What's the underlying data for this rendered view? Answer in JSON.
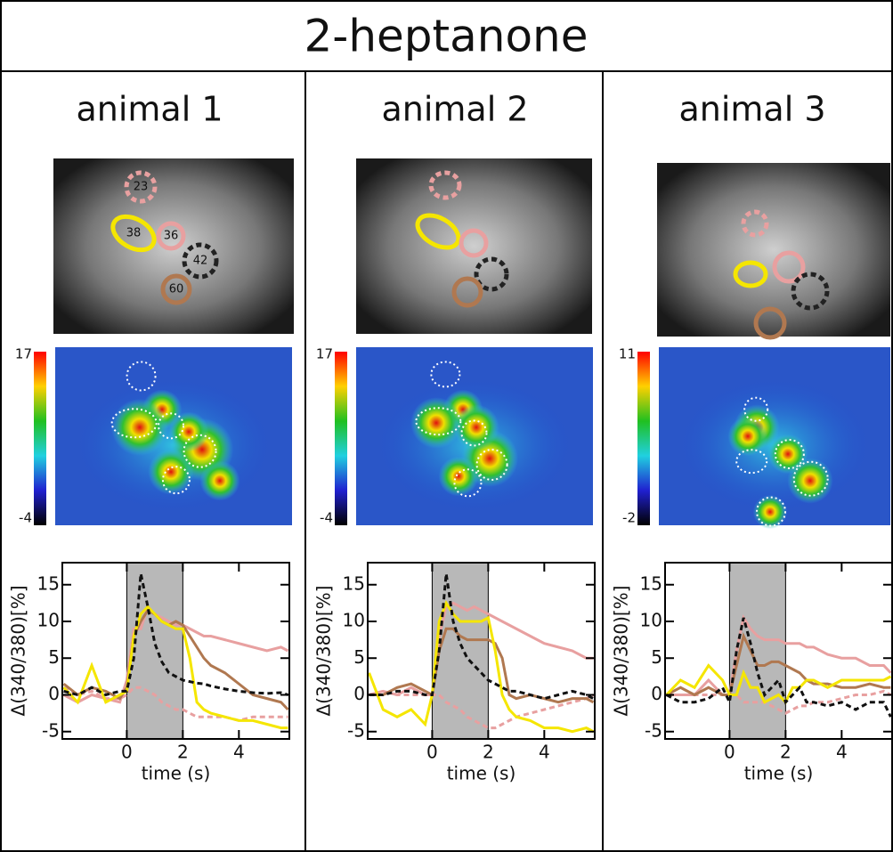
{
  "title": "2-heptanone",
  "panels": [
    {
      "label": "animal 1",
      "colorbar": {
        "max": 17,
        "min": -4
      },
      "roi_labels": [
        "23",
        "38",
        "36",
        "42",
        "60"
      ]
    },
    {
      "label": "animal 2",
      "colorbar": {
        "max": 17,
        "min": -4
      }
    },
    {
      "label": "animal 3",
      "colorbar": {
        "max": 11,
        "min": -2
      }
    }
  ],
  "chart_data": [
    {
      "type": "line",
      "ylabel": "Δ(340/380)[%]",
      "xlabel": "time (s)",
      "xlim": [
        -2.3,
        5.8
      ],
      "ylim": [
        -6,
        18
      ],
      "xticks": [
        0,
        2,
        4
      ],
      "yticks": [
        -5,
        0,
        5,
        10,
        15
      ],
      "shade": [
        0,
        2
      ],
      "x": [
        -2.25,
        -1.75,
        -1.25,
        -0.75,
        -0.25,
        0,
        0.25,
        0.5,
        0.75,
        1,
        1.25,
        1.5,
        1.75,
        2,
        2.25,
        2.5,
        2.75,
        3,
        3.5,
        4,
        4.5,
        5,
        5.5,
        5.75
      ],
      "series": [
        {
          "color": "#e8a0a0",
          "dash": true,
          "values": [
            1,
            0,
            0.5,
            -0.5,
            -0.5,
            0,
            1,
            1,
            0.5,
            0,
            -1,
            -1.5,
            -2,
            -2,
            -2.5,
            -3,
            -3,
            -3,
            -3,
            -3.5,
            -3,
            -3,
            -3,
            -3
          ]
        },
        {
          "color": "#e8a0a0",
          "dash": false,
          "values": [
            0,
            -1,
            0,
            -0.5,
            -1,
            2,
            9,
            9,
            12,
            11,
            10.5,
            10,
            9.5,
            9.5,
            9,
            8.5,
            8,
            8,
            7.5,
            7,
            6.5,
            6,
            6.5,
            6
          ]
        },
        {
          "color": "#b07850",
          "dash": false,
          "values": [
            1.5,
            0,
            1,
            0.5,
            -0.5,
            1,
            8,
            10,
            11.5,
            11,
            10,
            9.5,
            10,
            9.5,
            8,
            6.5,
            5,
            4,
            3,
            1.5,
            0,
            -0.5,
            -1,
            -2
          ]
        },
        {
          "color": "#f5e600",
          "dash": false,
          "values": [
            1,
            -1,
            4,
            -1,
            0,
            0.5,
            8,
            11,
            12,
            11,
            10,
            9.5,
            9,
            9,
            5,
            -1,
            -2,
            -2.5,
            -3,
            -3.5,
            -3.5,
            -4,
            -4.5,
            -4.5
          ]
        },
        {
          "color": "#111111",
          "dash": true,
          "values": [
            0.5,
            0,
            1,
            0,
            0.5,
            0.5,
            5,
            16.5,
            12,
            7,
            4.5,
            3,
            2.5,
            2,
            1.8,
            1.6,
            1.5,
            1.2,
            0.8,
            0.5,
            0.3,
            0.2,
            0.3,
            0
          ]
        }
      ]
    },
    {
      "type": "line",
      "ylabel": "Δ(340/380)[%]",
      "xlabel": "time (s)",
      "xlim": [
        -2.3,
        5.8
      ],
      "ylim": [
        -6,
        18
      ],
      "xticks": [
        0,
        2,
        4
      ],
      "yticks": [
        -5,
        0,
        5,
        10,
        15
      ],
      "shade": [
        0,
        2
      ],
      "x": [
        -2.25,
        -1.75,
        -1.25,
        -0.75,
        -0.25,
        0,
        0.25,
        0.5,
        0.75,
        1,
        1.25,
        1.5,
        1.75,
        2,
        2.25,
        2.5,
        2.75,
        3,
        3.5,
        4,
        4.5,
        5,
        5.5,
        5.75
      ],
      "series": [
        {
          "color": "#e8a0a0",
          "dash": true,
          "values": [
            0,
            0.5,
            0,
            0,
            0,
            0,
            0,
            -1,
            -1.5,
            -2,
            -3,
            -3.5,
            -4,
            -4.5,
            -4.5,
            -4,
            -3.5,
            -3,
            -2.5,
            -2,
            -1.5,
            -1,
            -0.5,
            0
          ]
        },
        {
          "color": "#e8a0a0",
          "dash": false,
          "values": [
            0,
            0.5,
            0,
            1,
            0,
            0,
            8,
            12,
            12.5,
            12,
            11.5,
            12,
            11.5,
            11,
            10.5,
            10,
            9.5,
            9,
            8,
            7,
            6.5,
            6,
            5,
            5
          ]
        },
        {
          "color": "#b07850",
          "dash": false,
          "values": [
            0,
            0,
            1,
            1.5,
            0.5,
            0,
            6,
            9,
            9,
            8,
            7.5,
            7.5,
            7.5,
            7.5,
            7,
            5,
            0,
            -0.5,
            0,
            -0.5,
            -1,
            -0.5,
            -0.5,
            -1
          ]
        },
        {
          "color": "#f5e600",
          "dash": false,
          "values": [
            3,
            -2,
            -3,
            -2,
            -4,
            0,
            10,
            12.5,
            11,
            10,
            10,
            10,
            10,
            10.5,
            6,
            0,
            -2,
            -3,
            -3.5,
            -4.5,
            -4.5,
            -5,
            -4.5,
            -5
          ]
        },
        {
          "color": "#111111",
          "dash": true,
          "values": [
            0,
            0,
            0.5,
            0.5,
            0,
            0,
            6,
            16.5,
            10,
            7,
            5,
            4,
            3,
            2,
            1.5,
            1,
            0.5,
            0.5,
            0,
            -0.5,
            0,
            0.5,
            0,
            -0.5
          ]
        }
      ]
    },
    {
      "type": "line",
      "ylabel": "Δ(340/380)[%]",
      "xlabel": "time (s)",
      "xlim": [
        -2.3,
        5.8
      ],
      "ylim": [
        -6,
        18
      ],
      "xticks": [
        0,
        2,
        4
      ],
      "yticks": [
        -5,
        0,
        5,
        10,
        15
      ],
      "shade": [
        0,
        2
      ],
      "x": [
        -2.25,
        -1.75,
        -1.25,
        -0.75,
        -0.25,
        0,
        0.25,
        0.5,
        0.75,
        1,
        1.25,
        1.5,
        1.75,
        2,
        2.25,
        2.5,
        2.75,
        3,
        3.5,
        4,
        4.5,
        5,
        5.5,
        5.75
      ],
      "series": [
        {
          "color": "#e8a0a0",
          "dash": true,
          "values": [
            0,
            0,
            0,
            0,
            0,
            0,
            0,
            -1,
            -1,
            -1,
            -1,
            -1.5,
            -2,
            -2.5,
            -2,
            -1.5,
            -1.5,
            -1,
            -1,
            -0.5,
            0,
            0,
            0.5,
            0
          ]
        },
        {
          "color": "#e8a0a0",
          "dash": false,
          "values": [
            0,
            0,
            0,
            2,
            0,
            0,
            6,
            10.5,
            9,
            8,
            7.5,
            7.5,
            7.5,
            7,
            7,
            7,
            6.5,
            6.5,
            5.5,
            5,
            5,
            4,
            4,
            3
          ]
        },
        {
          "color": "#b07850",
          "dash": false,
          "values": [
            0,
            1,
            0,
            1,
            0,
            0,
            4,
            8,
            6,
            4,
            4,
            4.5,
            4.5,
            4,
            3.5,
            3,
            2,
            1.5,
            1.5,
            1,
            1,
            1.5,
            1,
            1
          ]
        },
        {
          "color": "#f5e600",
          "dash": false,
          "values": [
            0,
            2,
            1,
            4,
            2,
            0,
            0,
            3,
            1,
            1,
            -1,
            -0.5,
            0,
            -1,
            1,
            1,
            2,
            2,
            1,
            2,
            2,
            2,
            2,
            2.5
          ]
        },
        {
          "color": "#111111",
          "dash": true,
          "values": [
            0,
            -1,
            -1,
            -0.5,
            1,
            -1,
            6,
            10.5,
            7,
            3,
            0,
            1,
            2,
            -1,
            0,
            1,
            -1,
            -1,
            -1.5,
            -1,
            -2,
            -1,
            -1,
            -3
          ]
        }
      ]
    }
  ]
}
